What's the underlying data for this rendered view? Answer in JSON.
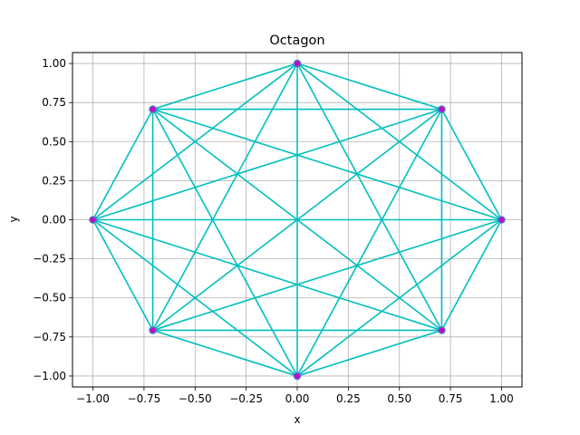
{
  "chart_data": {
    "type": "line",
    "title": "Octagon",
    "xlabel": "x",
    "ylabel": "y",
    "xlim": [
      -1.1,
      1.1
    ],
    "ylim": [
      -1.07,
      1.07
    ],
    "grid": true,
    "xticks": [
      -1.0,
      -0.75,
      -0.5,
      -0.25,
      0.0,
      0.25,
      0.5,
      0.75,
      1.0
    ],
    "xtick_labels": [
      "−1.00",
      "−0.75",
      "−0.50",
      "−0.25",
      "0.00",
      "0.25",
      "0.50",
      "0.75",
      "1.00"
    ],
    "yticks": [
      -1.0,
      -0.75,
      -0.5,
      -0.25,
      0.0,
      0.25,
      0.5,
      0.75,
      1.0
    ],
    "ytick_labels": [
      "−1.00",
      "−0.75",
      "−0.50",
      "−0.25",
      "0.00",
      "0.25",
      "0.50",
      "0.75",
      "1.00"
    ],
    "vertices": [
      {
        "x": 1.0,
        "y": 0.0
      },
      {
        "x": 0.7071,
        "y": 0.7071
      },
      {
        "x": 0.0,
        "y": 1.0
      },
      {
        "x": -0.7071,
        "y": 0.7071
      },
      {
        "x": -1.0,
        "y": 0.0
      },
      {
        "x": -0.7071,
        "y": -0.7071
      },
      {
        "x": 0.0,
        "y": -1.0
      },
      {
        "x": 0.7071,
        "y": -0.7071
      }
    ],
    "edges": "all pairs of vertices connected",
    "line_color": "#00bfbf",
    "marker_edge_color": "#4a7ebb",
    "marker_face_color": "#cc00cc"
  }
}
